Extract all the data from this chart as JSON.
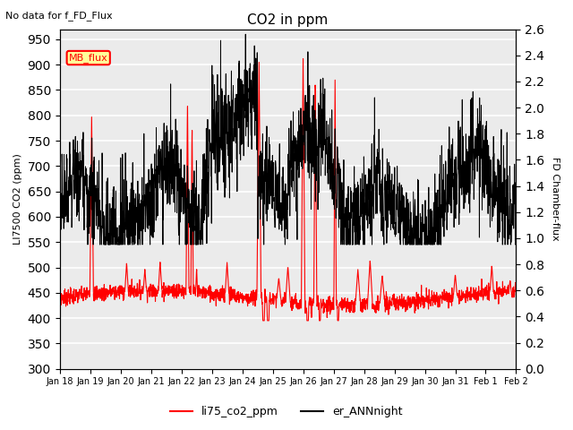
{
  "title": "CO2 in ppm",
  "top_left_text": "No data for f_FD_Flux",
  "ylabel_left": "LI7500 CO2 (ppm)",
  "ylabel_right": "FD Chamber-flux",
  "ylim_left": [
    300,
    970
  ],
  "ylim_right": [
    0.0,
    2.6
  ],
  "yticks_left": [
    300,
    350,
    400,
    450,
    500,
    550,
    600,
    650,
    700,
    750,
    800,
    850,
    900,
    950
  ],
  "yticks_right": [
    0.0,
    0.2,
    0.4,
    0.6,
    0.8,
    1.0,
    1.2,
    1.4,
    1.6,
    1.8,
    2.0,
    2.2,
    2.4,
    2.6
  ],
  "xtick_labels": [
    "Jan 18",
    "Jan 19",
    "Jan 20",
    "Jan 21",
    "Jan 22",
    "Jan 23",
    "Jan 24",
    "Jan 25",
    "Jan 26",
    "Jan 27",
    "Jan 28",
    "Jan 29",
    "Jan 30",
    "Jan 31",
    "Feb 1",
    "Feb 2"
  ],
  "legend_entries": [
    "li75_co2_ppm",
    "er_ANNnight"
  ],
  "legend_colors": [
    "red",
    "black"
  ],
  "mb_flux_box_color": "#ffff99",
  "mb_flux_border_color": "red",
  "mb_flux_text": "MB_flux",
  "background_color": "#ebebeb",
  "line1_color": "red",
  "line2_color": "black",
  "grid_color": "white",
  "n_points": 2000
}
